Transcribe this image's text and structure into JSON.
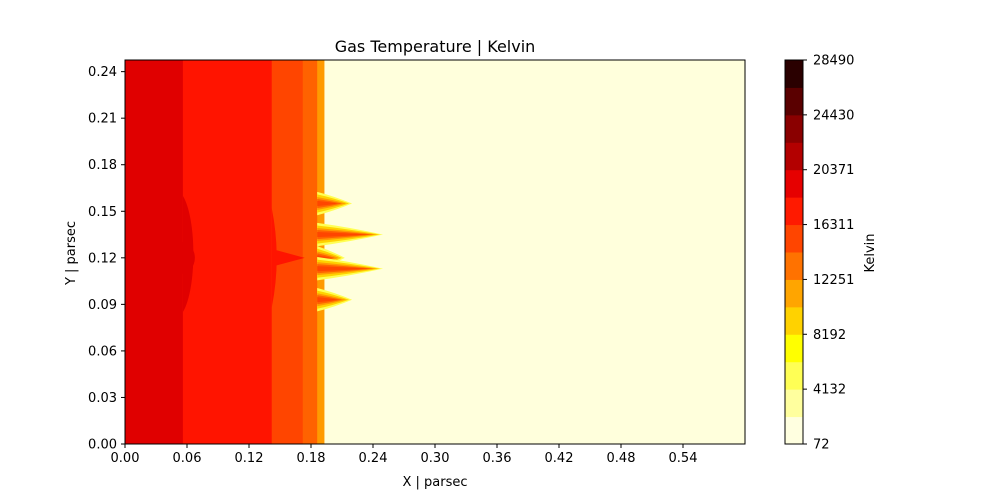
{
  "chart_data": {
    "type": "heatmap",
    "subtype": "filled-contour",
    "title": "Gas Temperature | Kelvin",
    "xlabel": "X | parsec",
    "ylabel": "Y | parsec",
    "xlim": [
      0.0,
      0.6
    ],
    "ylim": [
      0.0,
      0.2475
    ],
    "xticks": [
      "0.00",
      "0.06",
      "0.12",
      "0.18",
      "0.24",
      "0.30",
      "0.36",
      "0.42",
      "0.48",
      "0.54"
    ],
    "yticks": [
      "0.00",
      "0.03",
      "0.06",
      "0.09",
      "0.12",
      "0.15",
      "0.18",
      "0.21",
      "0.24"
    ],
    "colormap": "hot_r",
    "colorbar": {
      "label": "Kelvin",
      "min": 72,
      "max": 28490,
      "ticks": [
        "72",
        "4132",
        "8192",
        "12251",
        "16311",
        "20371",
        "24430",
        "28490"
      ],
      "level_colors": [
        "#ffffe0",
        "#ffff9e",
        "#ffff55",
        "#ffff00",
        "#ffd200",
        "#ffa500",
        "#ff7200",
        "#ff4500",
        "#ff1a00",
        "#e60000",
        "#b30000",
        "#8a0000",
        "#5a0000",
        "#2a0000"
      ]
    },
    "regions": [
      {
        "x_from": 0.0,
        "x_to": 0.056,
        "temperature_band_K": [
          20371,
          22400
        ],
        "color": "#e00000"
      },
      {
        "x_from": 0.056,
        "x_to": 0.142,
        "temperature_band_K": [
          18340,
          20371
        ],
        "color": "#ff1400"
      },
      {
        "x_from": 0.142,
        "x_to": 0.172,
        "temperature_band_K": [
          16311,
          18340
        ],
        "color": "#ff4500"
      },
      {
        "x_from": 0.172,
        "x_to": 0.186,
        "temperature_band_K": [
          14280,
          16311
        ],
        "color": "#ff6200"
      },
      {
        "x_from": 0.186,
        "x_to": 0.193,
        "temperature_band_K": [
          12251,
          14280
        ],
        "color": "#ff9a00"
      },
      {
        "x_from": 0.193,
        "x_to": 0.6,
        "temperature_band_K": [
          72,
          2100
        ],
        "color": "#ffffdc"
      }
    ],
    "fingers": [
      {
        "y": 0.12,
        "x_tip": 0.205
      },
      {
        "y": 0.135,
        "x_tip": 0.242
      },
      {
        "y": 0.113,
        "x_tip": 0.242
      },
      {
        "y": 0.155,
        "x_tip": 0.212
      },
      {
        "y": 0.093,
        "x_tip": 0.212
      }
    ]
  }
}
